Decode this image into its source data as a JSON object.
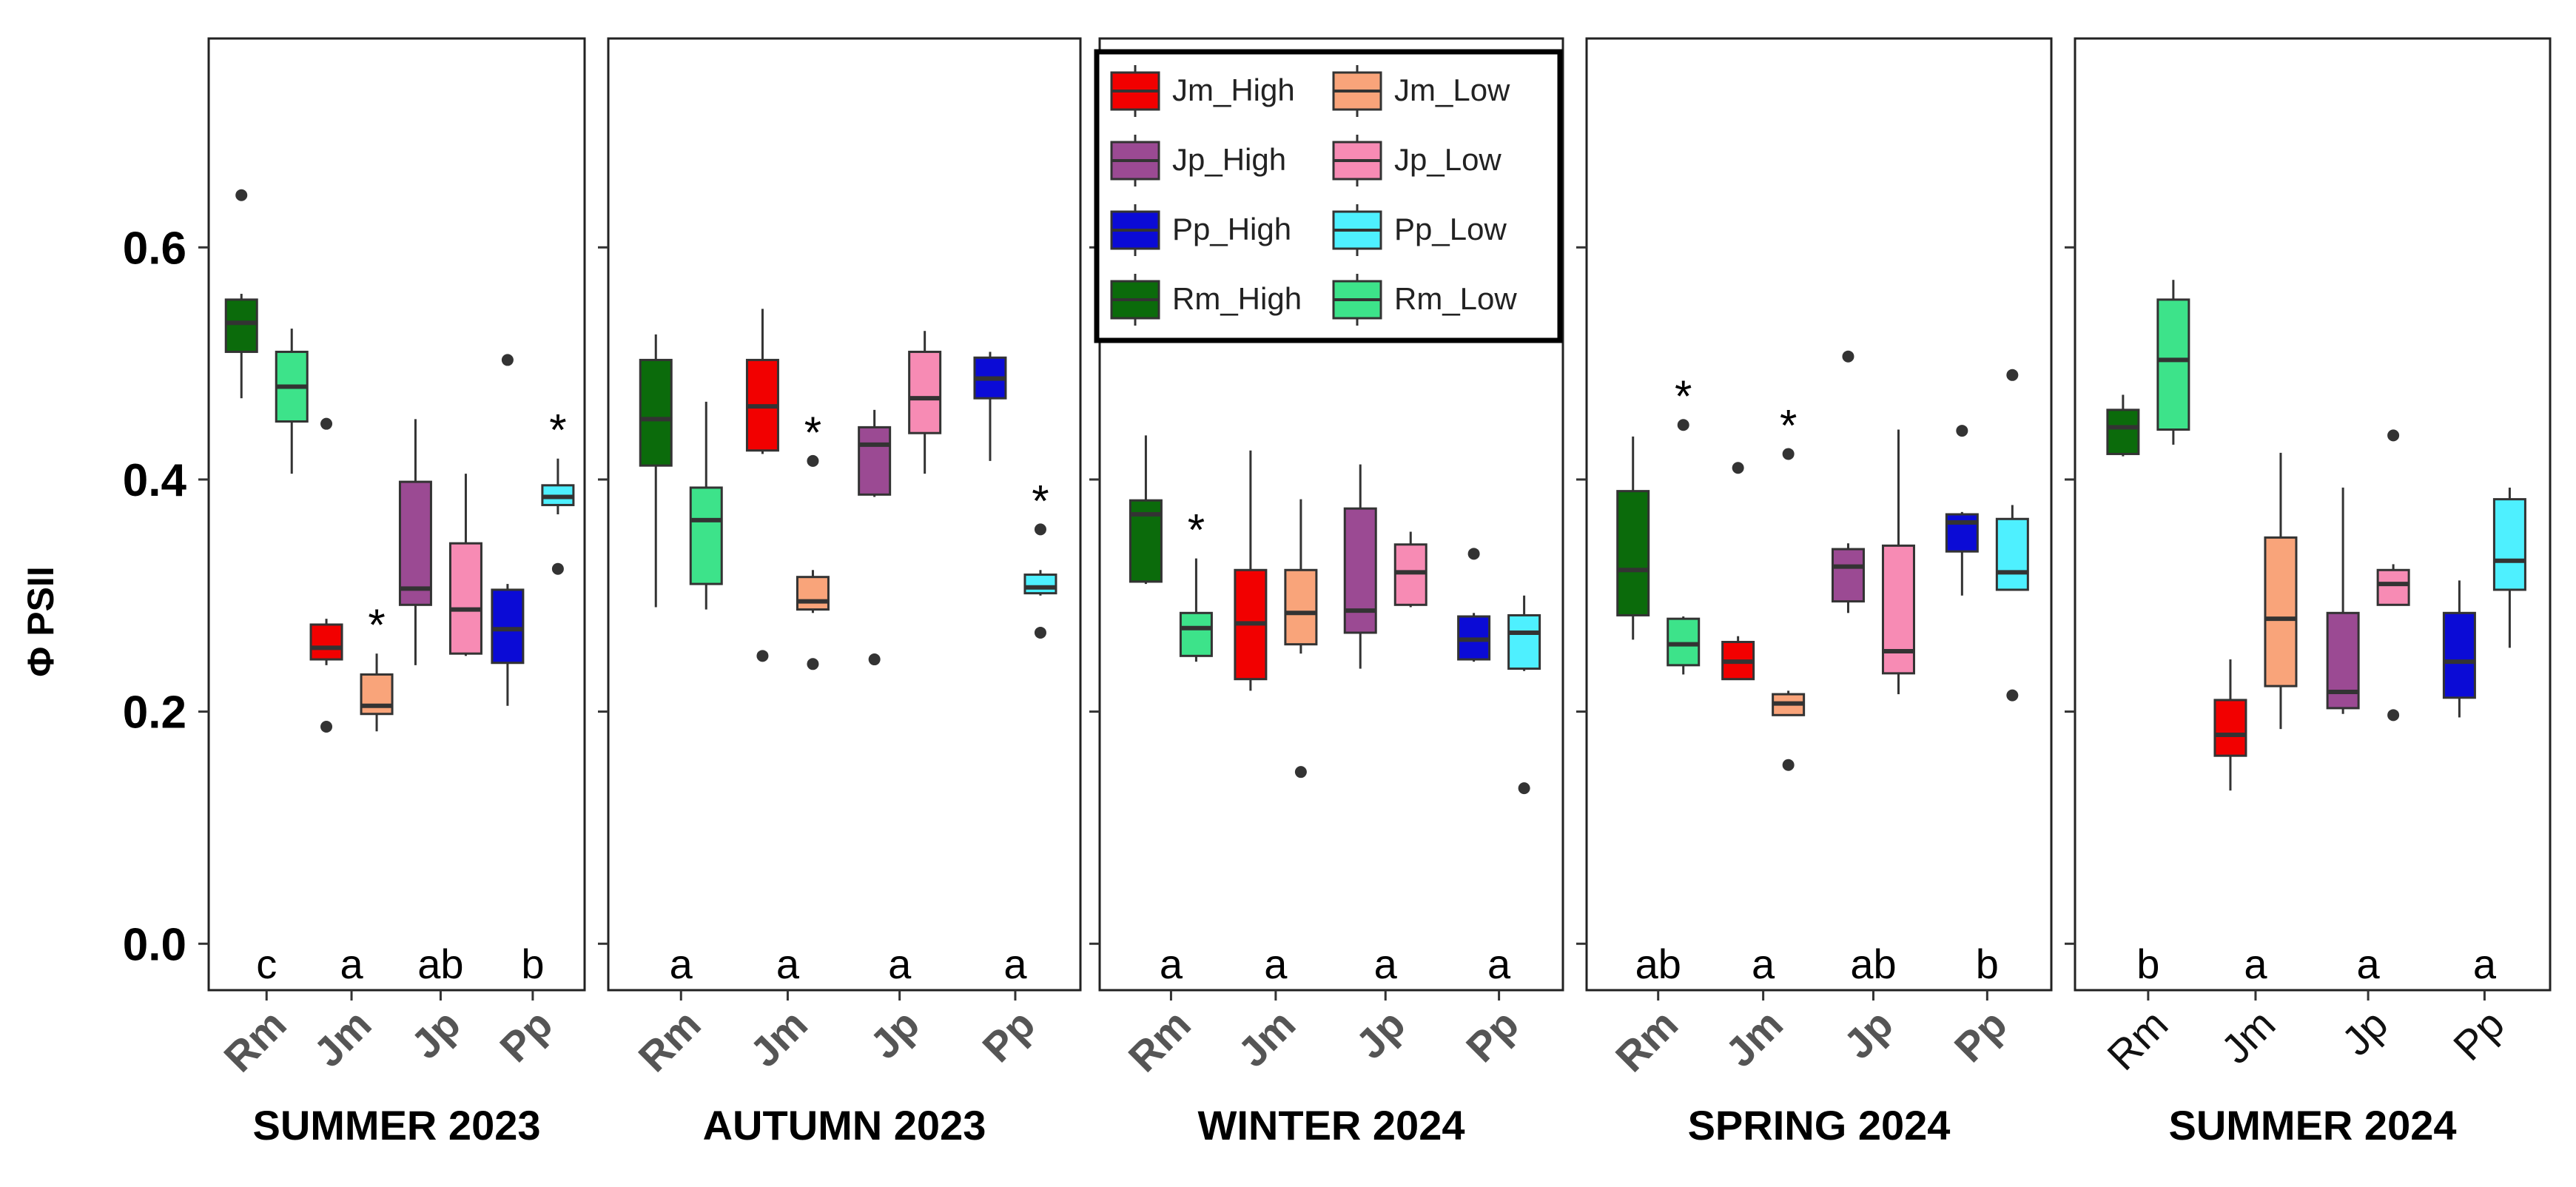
{
  "chart_data": {
    "type": "box",
    "ylabel": "Φ PSII",
    "ylim": [
      -0.04,
      0.78
    ],
    "yticks": [
      0.0,
      0.2,
      0.4,
      0.6
    ],
    "ytick_labels": [
      "0.0",
      "0.2",
      "0.4",
      "0.6"
    ],
    "species": [
      "Rm",
      "Jm",
      "Jp",
      "Pp"
    ],
    "colors": {
      "Jm_High": "#f20000",
      "Jm_Low": "#f9a47a",
      "Jp_High": "#9b4a93",
      "Jp_Low": "#f78bb4",
      "Pp_High": "#0b0bd6",
      "Pp_Low": "#4ef0ff",
      "Rm_High": "#0b6b0b",
      "Rm_Low": "#3de38a"
    },
    "legend": {
      "position": "top-center (inside WINTER 2024 panel)",
      "entries": [
        "Jm_High",
        "Jm_Low",
        "Jp_High",
        "Jp_Low",
        "Pp_High",
        "Pp_Low",
        "Rm_High",
        "Rm_Low"
      ]
    },
    "panels": [
      {
        "season": "SUMMER 2023",
        "letters": [
          "c",
          "a",
          "ab",
          "b"
        ],
        "stars": [
          false,
          true,
          false,
          true
        ],
        "tick_style": "bold",
        "boxes": [
          {
            "group": "Rm_High",
            "min": 0.47,
            "q1": 0.51,
            "median": 0.535,
            "q3": 0.555,
            "max": 0.56,
            "outliers": [
              0.645
            ]
          },
          {
            "group": "Rm_Low",
            "min": 0.405,
            "q1": 0.45,
            "median": 0.48,
            "q3": 0.51,
            "max": 0.53,
            "outliers": []
          },
          {
            "group": "Jm_High",
            "min": 0.24,
            "q1": 0.245,
            "median": 0.255,
            "q3": 0.275,
            "max": 0.28,
            "outliers": [
              0.448,
              0.187
            ]
          },
          {
            "group": "Jm_Low",
            "min": 0.183,
            "q1": 0.198,
            "median": 0.205,
            "q3": 0.232,
            "max": 0.25,
            "outliers": []
          },
          {
            "group": "Jp_High",
            "min": 0.24,
            "q1": 0.292,
            "median": 0.306,
            "q3": 0.398,
            "max": 0.452,
            "outliers": []
          },
          {
            "group": "Jp_Low",
            "min": 0.248,
            "q1": 0.25,
            "median": 0.288,
            "q3": 0.345,
            "max": 0.405,
            "outliers": []
          },
          {
            "group": "Pp_High",
            "min": 0.205,
            "q1": 0.242,
            "median": 0.271,
            "q3": 0.305,
            "max": 0.31,
            "outliers": [
              0.503
            ]
          },
          {
            "group": "Pp_Low",
            "min": 0.37,
            "q1": 0.378,
            "median": 0.385,
            "q3": 0.395,
            "max": 0.418,
            "outliers": [
              0.323
            ]
          }
        ]
      },
      {
        "season": "AUTUMN 2023",
        "letters": [
          "a",
          "a",
          "a",
          "a"
        ],
        "stars": [
          false,
          true,
          false,
          true
        ],
        "tick_style": "bold",
        "boxes": [
          {
            "group": "Rm_High",
            "min": 0.29,
            "q1": 0.412,
            "median": 0.452,
            "q3": 0.503,
            "max": 0.525,
            "outliers": []
          },
          {
            "group": "Rm_Low",
            "min": 0.288,
            "q1": 0.31,
            "median": 0.365,
            "q3": 0.393,
            "max": 0.467,
            "outliers": []
          },
          {
            "group": "Jm_High",
            "min": 0.422,
            "q1": 0.425,
            "median": 0.463,
            "q3": 0.503,
            "max": 0.547,
            "outliers": [
              0.248
            ]
          },
          {
            "group": "Jm_Low",
            "min": 0.285,
            "q1": 0.288,
            "median": 0.295,
            "q3": 0.316,
            "max": 0.322,
            "outliers": [
              0.416,
              0.241
            ]
          },
          {
            "group": "Jp_High",
            "min": 0.385,
            "q1": 0.387,
            "median": 0.43,
            "q3": 0.445,
            "max": 0.46,
            "outliers": [
              0.245
            ]
          },
          {
            "group": "Jp_Low",
            "min": 0.405,
            "q1": 0.44,
            "median": 0.47,
            "q3": 0.51,
            "max": 0.528,
            "outliers": []
          },
          {
            "group": "Pp_High",
            "min": 0.416,
            "q1": 0.47,
            "median": 0.487,
            "q3": 0.505,
            "max": 0.51,
            "outliers": []
          },
          {
            "group": "Pp_Low",
            "min": 0.3,
            "q1": 0.302,
            "median": 0.307,
            "q3": 0.318,
            "max": 0.322,
            "outliers": [
              0.357,
              0.268
            ]
          }
        ]
      },
      {
        "season": "WINTER 2024",
        "letters": [
          "a",
          "a",
          "a",
          "a"
        ],
        "stars": [
          true,
          false,
          false,
          false
        ],
        "tick_style": "bold",
        "boxes": [
          {
            "group": "Rm_High",
            "min": 0.31,
            "q1": 0.312,
            "median": 0.37,
            "q3": 0.382,
            "max": 0.438,
            "outliers": []
          },
          {
            "group": "Rm_Low",
            "min": 0.243,
            "q1": 0.248,
            "median": 0.272,
            "q3": 0.285,
            "max": 0.332,
            "outliers": []
          },
          {
            "group": "Jm_High",
            "min": 0.218,
            "q1": 0.228,
            "median": 0.276,
            "q3": 0.322,
            "max": 0.425,
            "outliers": []
          },
          {
            "group": "Jm_Low",
            "min": 0.25,
            "q1": 0.258,
            "median": 0.285,
            "q3": 0.322,
            "max": 0.383,
            "outliers": [
              0.148
            ]
          },
          {
            "group": "Jp_High",
            "min": 0.237,
            "q1": 0.268,
            "median": 0.287,
            "q3": 0.375,
            "max": 0.413,
            "outliers": []
          },
          {
            "group": "Jp_Low",
            "min": 0.29,
            "q1": 0.292,
            "median": 0.32,
            "q3": 0.344,
            "max": 0.355,
            "outliers": []
          },
          {
            "group": "Pp_High",
            "min": 0.243,
            "q1": 0.245,
            "median": 0.262,
            "q3": 0.282,
            "max": 0.285,
            "outliers": [
              0.336
            ]
          },
          {
            "group": "Pp_Low",
            "min": 0.235,
            "q1": 0.237,
            "median": 0.268,
            "q3": 0.283,
            "max": 0.3,
            "outliers": [
              0.134
            ]
          }
        ]
      },
      {
        "season": "SPRING 2024",
        "letters": [
          "ab",
          "a",
          "ab",
          "b"
        ],
        "stars": [
          true,
          true,
          false,
          false
        ],
        "tick_style": "bold",
        "boxes": [
          {
            "group": "Rm_High",
            "min": 0.262,
            "q1": 0.283,
            "median": 0.322,
            "q3": 0.39,
            "max": 0.437,
            "outliers": []
          },
          {
            "group": "Rm_Low",
            "min": 0.232,
            "q1": 0.24,
            "median": 0.258,
            "q3": 0.28,
            "max": 0.282,
            "outliers": [
              0.447
            ]
          },
          {
            "group": "Jm_High",
            "min": 0.228,
            "q1": 0.228,
            "median": 0.243,
            "q3": 0.26,
            "max": 0.265,
            "outliers": [
              0.41
            ]
          },
          {
            "group": "Jm_Low",
            "min": 0.197,
            "q1": 0.197,
            "median": 0.207,
            "q3": 0.215,
            "max": 0.218,
            "outliers": [
              0.422,
              0.154
            ]
          },
          {
            "group": "Jp_High",
            "min": 0.285,
            "q1": 0.295,
            "median": 0.325,
            "q3": 0.34,
            "max": 0.345,
            "outliers": [
              0.506
            ]
          },
          {
            "group": "Jp_Low",
            "min": 0.215,
            "q1": 0.233,
            "median": 0.252,
            "q3": 0.343,
            "max": 0.443,
            "outliers": []
          },
          {
            "group": "Pp_High",
            "min": 0.3,
            "q1": 0.338,
            "median": 0.363,
            "q3": 0.37,
            "max": 0.372,
            "outliers": [
              0.442
            ]
          },
          {
            "group": "Pp_Low",
            "min": 0.305,
            "q1": 0.305,
            "median": 0.32,
            "q3": 0.366,
            "max": 0.378,
            "outliers": [
              0.49,
              0.214
            ]
          }
        ]
      },
      {
        "season": "SUMMER 2024",
        "letters": [
          "b",
          "a",
          "a",
          "a"
        ],
        "stars": [
          false,
          false,
          false,
          false
        ],
        "tick_style": "plain",
        "boxes": [
          {
            "group": "Rm_High",
            "min": 0.42,
            "q1": 0.422,
            "median": 0.445,
            "q3": 0.46,
            "max": 0.473,
            "outliers": []
          },
          {
            "group": "Rm_Low",
            "min": 0.43,
            "q1": 0.443,
            "median": 0.503,
            "q3": 0.555,
            "max": 0.572,
            "outliers": []
          },
          {
            "group": "Jm_High",
            "min": 0.132,
            "q1": 0.162,
            "median": 0.18,
            "q3": 0.21,
            "max": 0.245,
            "outliers": []
          },
          {
            "group": "Jm_Low",
            "min": 0.185,
            "q1": 0.222,
            "median": 0.28,
            "q3": 0.35,
            "max": 0.423,
            "outliers": []
          },
          {
            "group": "Jp_High",
            "min": 0.198,
            "q1": 0.203,
            "median": 0.217,
            "q3": 0.285,
            "max": 0.393,
            "outliers": []
          },
          {
            "group": "Jp_Low",
            "min": 0.292,
            "q1": 0.292,
            "median": 0.31,
            "q3": 0.322,
            "max": 0.327,
            "outliers": [
              0.438,
              0.197
            ]
          },
          {
            "group": "Pp_High",
            "min": 0.195,
            "q1": 0.212,
            "median": 0.243,
            "q3": 0.285,
            "max": 0.313,
            "outliers": []
          },
          {
            "group": "Pp_Low",
            "min": 0.255,
            "q1": 0.305,
            "median": 0.33,
            "q3": 0.383,
            "max": 0.393,
            "outliers": []
          }
        ]
      }
    ]
  }
}
